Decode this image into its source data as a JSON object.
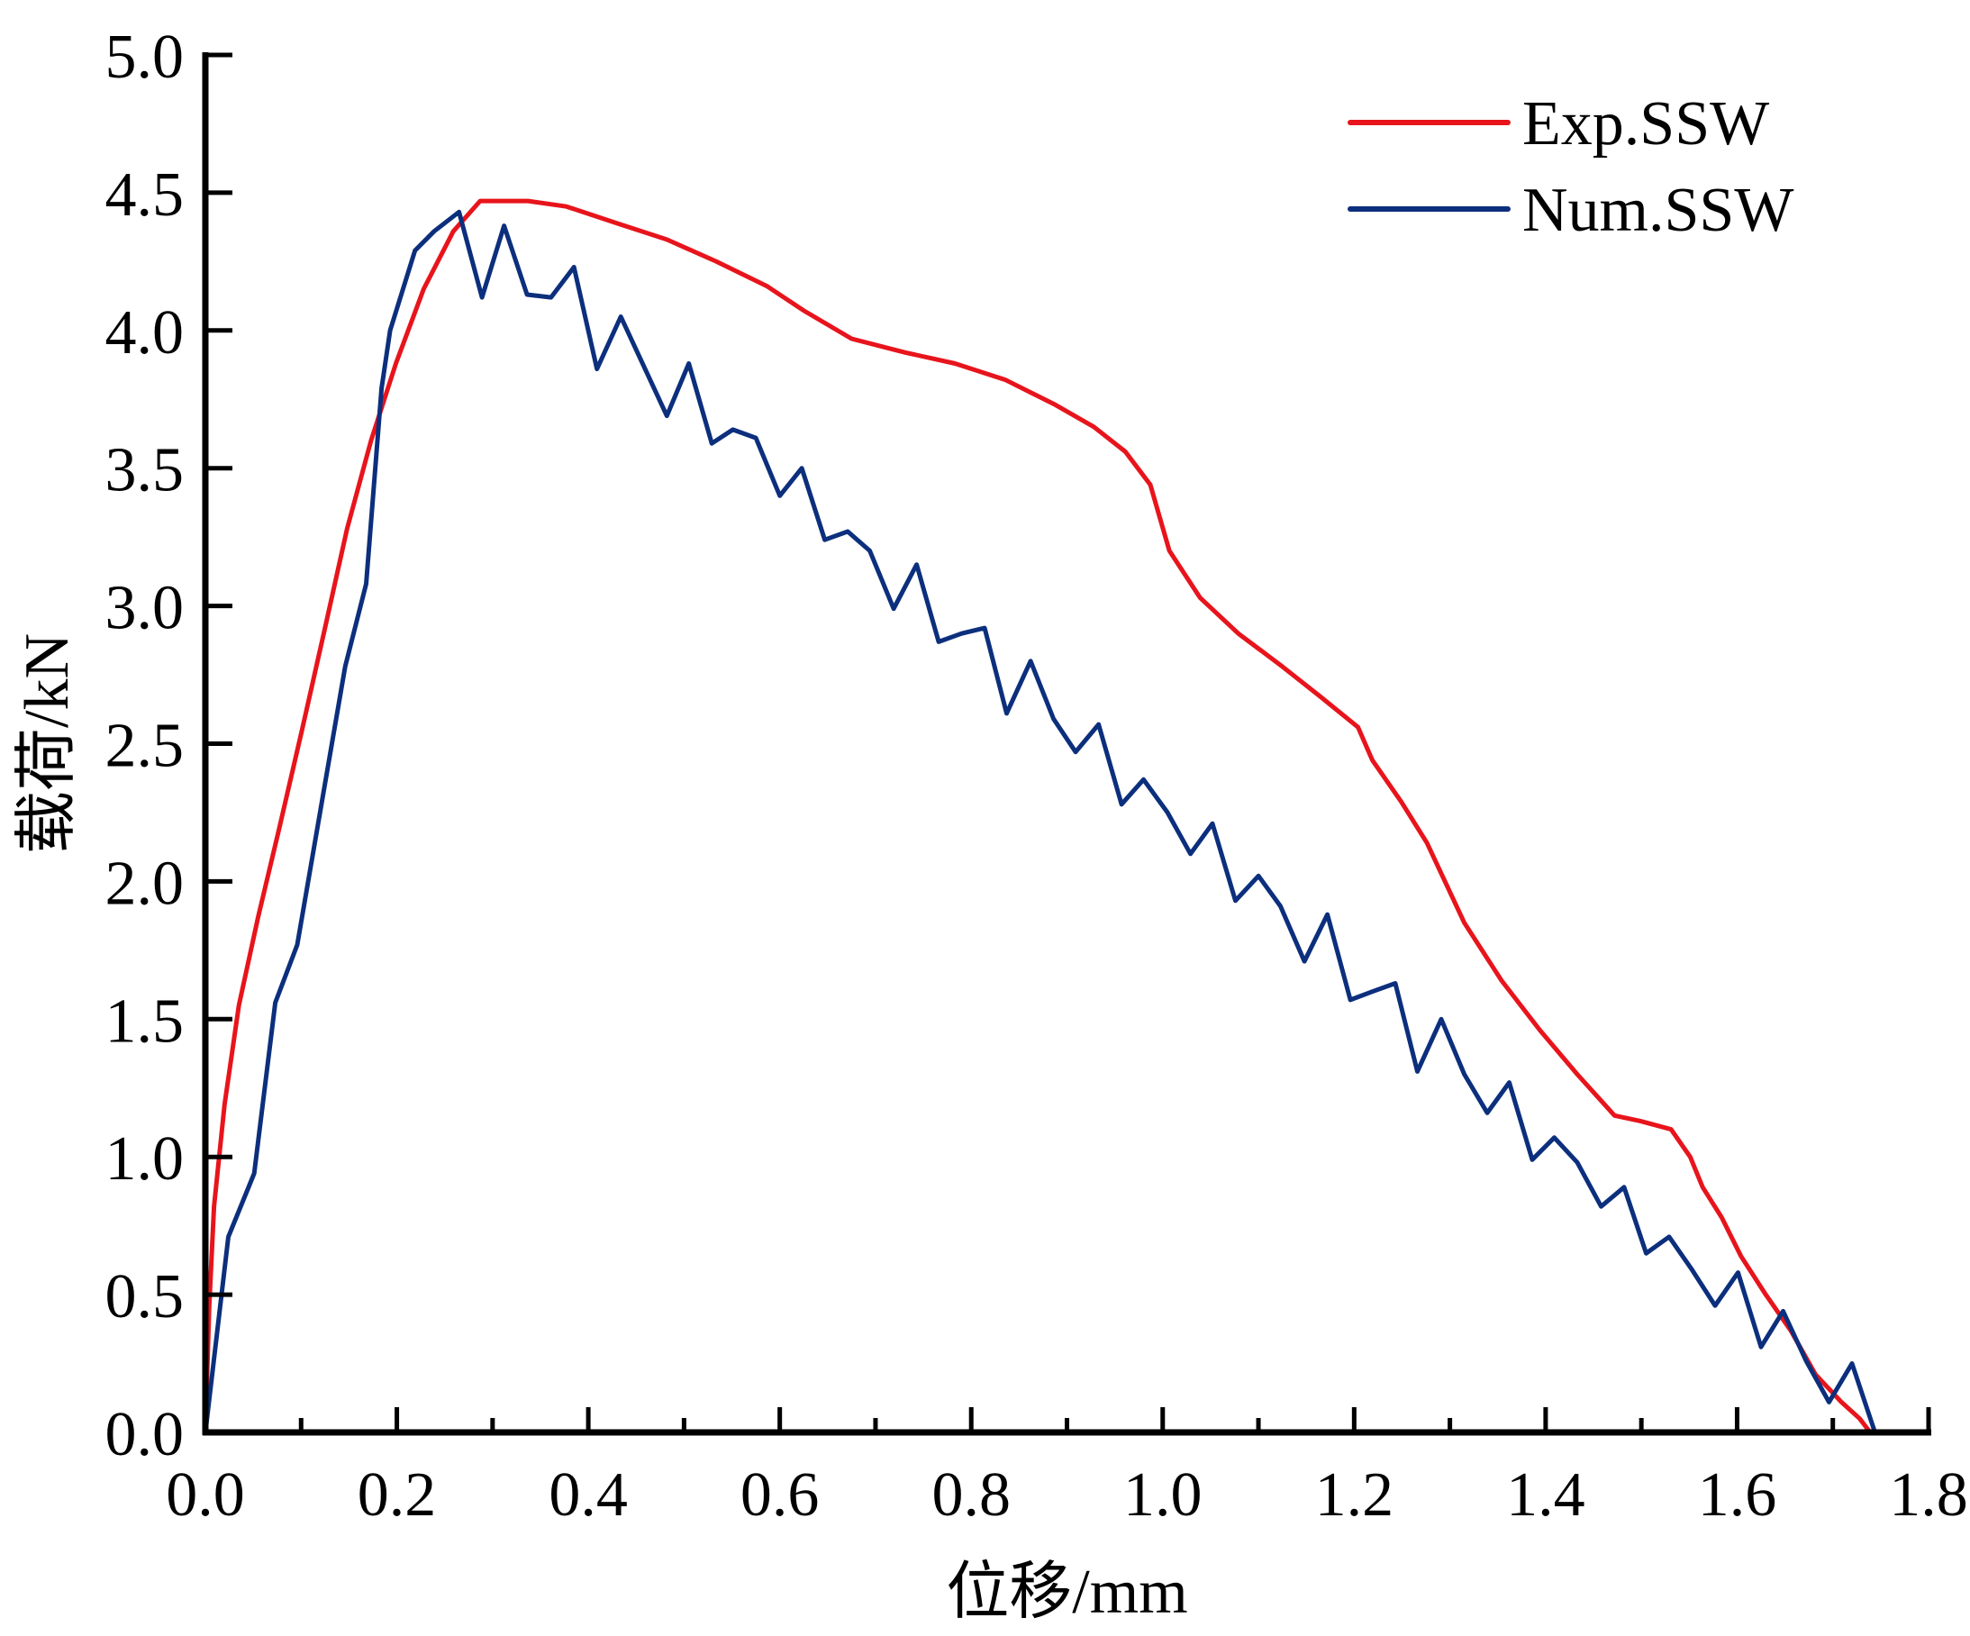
{
  "chart_data": {
    "type": "line",
    "title": "",
    "xlabel": "位移/mm",
    "ylabel": "载荷/kN",
    "xlim": [
      0,
      1.8
    ],
    "ylim": [
      0,
      5.0
    ],
    "xticks": [
      "0.0",
      "0.2",
      "0.4",
      "0.6",
      "0.8",
      "1.0",
      "1.2",
      "1.4",
      "1.6",
      "1.8"
    ],
    "xtick_values": [
      0,
      0.2,
      0.4,
      0.6,
      0.8,
      1.0,
      1.2,
      1.4,
      1.6,
      1.8
    ],
    "xminor_values": [
      0.1,
      0.3,
      0.5,
      0.7,
      0.9,
      1.1,
      1.3,
      1.5,
      1.7
    ],
    "yticks": [
      "0.0",
      "0.5",
      "1.0",
      "1.5",
      "2.0",
      "2.5",
      "3.0",
      "3.5",
      "4.0",
      "4.5",
      "5.0"
    ],
    "ytick_values": [
      0,
      0.5,
      1.0,
      1.5,
      2.0,
      2.5,
      3.0,
      3.5,
      4.0,
      4.5,
      5.0
    ],
    "grid": false,
    "legend_position": "top-right",
    "series": [
      {
        "name": "Exp.SSW",
        "color": "#e8141c",
        "x": [
          0,
          0.004,
          0.009,
          0.02,
          0.035,
          0.055,
          0.077,
          0.101,
          0.125,
          0.148,
          0.173,
          0.199,
          0.228,
          0.259,
          0.287,
          0.337,
          0.377,
          0.429,
          0.482,
          0.534,
          0.587,
          0.626,
          0.675,
          0.731,
          0.783,
          0.836,
          0.888,
          0.928,
          0.961,
          0.987,
          1.007,
          1.039,
          1.079,
          1.125,
          1.165,
          1.204,
          1.219,
          1.249,
          1.276,
          1.315,
          1.354,
          1.394,
          1.433,
          1.472,
          1.499,
          1.531,
          1.551,
          1.564,
          1.584,
          1.604,
          1.63,
          1.656,
          1.682,
          1.709,
          1.728,
          1.739
        ],
        "y": [
          0,
          0.46,
          0.82,
          1.19,
          1.55,
          1.87,
          2.19,
          2.55,
          2.92,
          3.28,
          3.6,
          3.88,
          4.15,
          4.36,
          4.47,
          4.47,
          4.45,
          4.39,
          4.33,
          4.25,
          4.16,
          4.07,
          3.97,
          3.92,
          3.88,
          3.82,
          3.73,
          3.65,
          3.56,
          3.44,
          3.2,
          3.03,
          2.9,
          2.78,
          2.67,
          2.56,
          2.44,
          2.29,
          2.14,
          1.85,
          1.64,
          1.46,
          1.3,
          1.15,
          1.13,
          1.1,
          1.0,
          0.89,
          0.78,
          0.64,
          0.5,
          0.37,
          0.21,
          0.11,
          0.05,
          0
        ]
      },
      {
        "name": "Num.SSW",
        "color": "#0c2f7d",
        "x": [
          0,
          0.024,
          0.051,
          0.073,
          0.096,
          0.146,
          0.168,
          0.184,
          0.193,
          0.219,
          0.239,
          0.265,
          0.289,
          0.312,
          0.336,
          0.361,
          0.385,
          0.409,
          0.434,
          0.482,
          0.505,
          0.529,
          0.551,
          0.575,
          0.6,
          0.623,
          0.647,
          0.671,
          0.694,
          0.719,
          0.743,
          0.766,
          0.79,
          0.814,
          0.837,
          0.862,
          0.886,
          0.909,
          0.933,
          0.957,
          0.98,
          1.005,
          1.029,
          1.052,
          1.076,
          1.1,
          1.123,
          1.148,
          1.172,
          1.196,
          1.219,
          1.243,
          1.266,
          1.291,
          1.315,
          1.339,
          1.362,
          1.386,
          1.409,
          1.433,
          1.458,
          1.482,
          1.505,
          1.529,
          1.553,
          1.577,
          1.601,
          1.625,
          1.648,
          1.672,
          1.696,
          1.72,
          1.744
        ],
        "y": [
          0,
          0.71,
          0.94,
          1.56,
          1.77,
          2.78,
          3.08,
          3.79,
          4.0,
          4.29,
          4.36,
          4.43,
          4.12,
          4.38,
          4.13,
          4.12,
          4.23,
          3.86,
          4.05,
          3.69,
          3.88,
          3.59,
          3.64,
          3.61,
          3.4,
          3.5,
          3.24,
          3.27,
          3.2,
          2.99,
          3.15,
          2.87,
          2.9,
          2.92,
          2.61,
          2.8,
          2.59,
          2.47,
          2.57,
          2.28,
          2.37,
          2.25,
          2.1,
          2.21,
          1.93,
          2.02,
          1.91,
          1.71,
          1.88,
          1.57,
          1.6,
          1.63,
          1.31,
          1.5,
          1.3,
          1.16,
          1.27,
          0.99,
          1.07,
          0.98,
          0.82,
          0.89,
          0.65,
          0.71,
          0.59,
          0.46,
          0.58,
          0.31,
          0.44,
          0.26,
          0.11,
          0.25,
          0
        ]
      }
    ]
  }
}
